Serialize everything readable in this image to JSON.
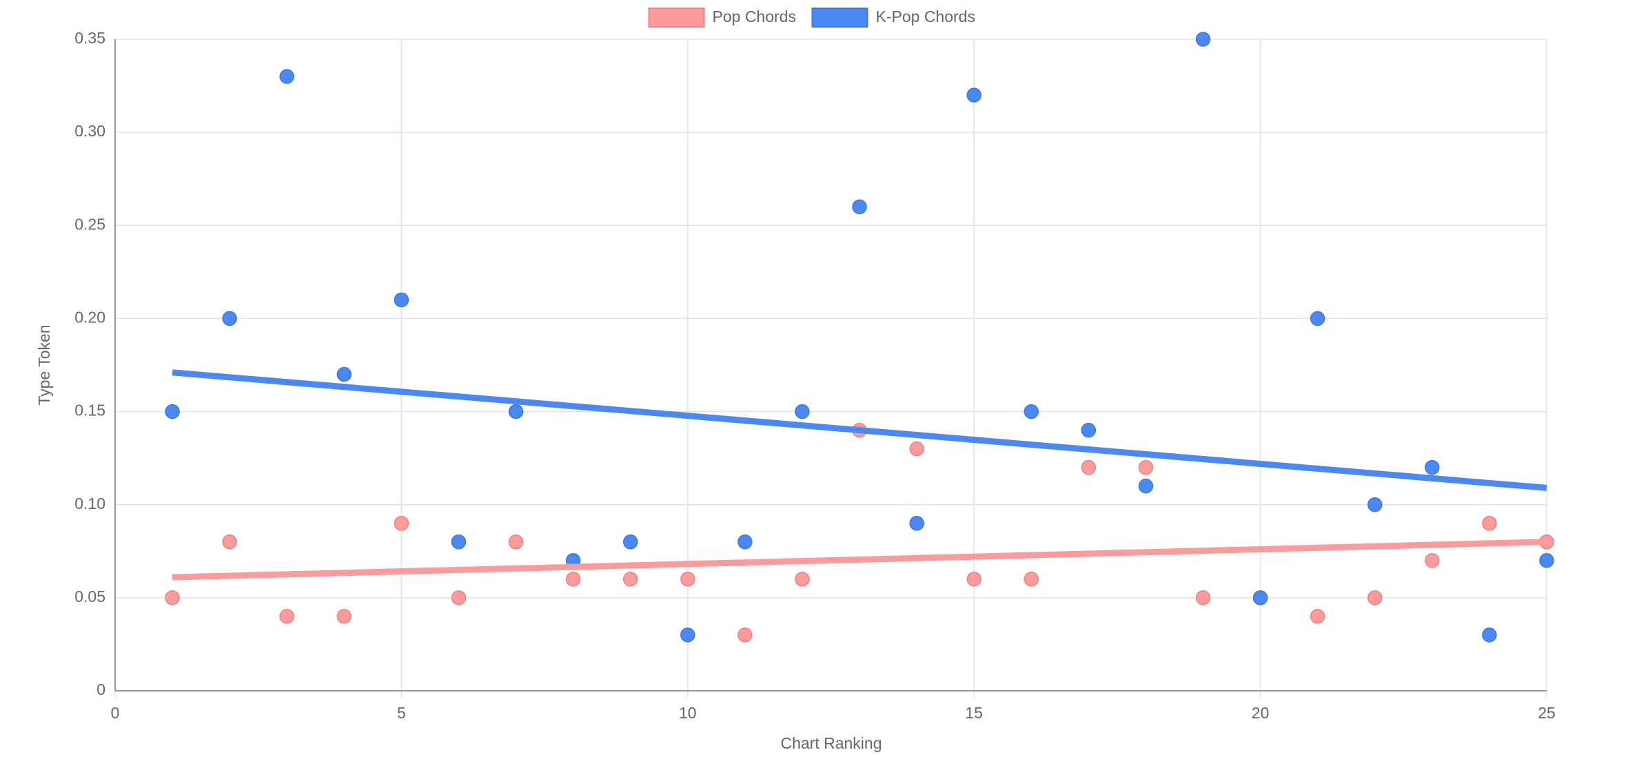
{
  "chart_data": {
    "type": "scatter",
    "xlabel": "Chart Ranking",
    "ylabel": "Type Token",
    "xlim": [
      0,
      25
    ],
    "xticks": [
      0,
      5,
      10,
      15,
      20,
      25
    ],
    "ylim": [
      0,
      0.35
    ],
    "yticks": [
      0,
      0.05,
      {
        "value": 0.1,
        "label": "0.10"
      },
      0.15,
      {
        "value": 0.2,
        "label": "0.20"
      },
      0.25,
      {
        "value": 0.3,
        "label": "0.30"
      },
      0.35
    ],
    "grid": true,
    "legend": "top",
    "series": [
      {
        "name": "Pop Chords",
        "color": "#fc9b9b",
        "edge": "#f08080",
        "x": [
          1,
          2,
          3,
          4,
          5,
          6,
          7,
          8,
          9,
          10,
          11,
          12,
          13,
          14,
          15,
          16,
          17,
          18,
          19,
          20,
          21,
          22,
          23,
          24,
          25
        ],
        "values": [
          0.05,
          0.08,
          0.04,
          0.04,
          0.09,
          0.05,
          0.08,
          0.06,
          0.06,
          0.06,
          0.03,
          0.06,
          0.14,
          0.13,
          0.06,
          0.06,
          0.12,
          0.12,
          0.05,
          0.05,
          0.04,
          0.05,
          0.07,
          0.09,
          0.08
        ],
        "trend": {
          "x": [
            1,
            25
          ],
          "values": [
            0.061,
            0.08
          ]
        }
      },
      {
        "name": "K-Pop Chords",
        "color": "#4a89f3",
        "edge": "#3a78e0",
        "x": [
          1,
          2,
          3,
          4,
          5,
          6,
          7,
          8,
          9,
          10,
          11,
          12,
          13,
          14,
          15,
          16,
          17,
          18,
          19,
          20,
          21,
          22,
          23,
          24,
          25
        ],
        "values": [
          0.15,
          0.2,
          0.33,
          0.17,
          0.21,
          0.08,
          0.15,
          0.07,
          0.08,
          0.03,
          0.08,
          0.15,
          0.26,
          0.09,
          0.32,
          0.15,
          0.14,
          0.11,
          0.35,
          0.05,
          0.2,
          0.1,
          0.12,
          0.03,
          0.07
        ],
        "trend": {
          "x": [
            1,
            25
          ],
          "values": [
            0.171,
            0.109
          ]
        }
      }
    ]
  }
}
